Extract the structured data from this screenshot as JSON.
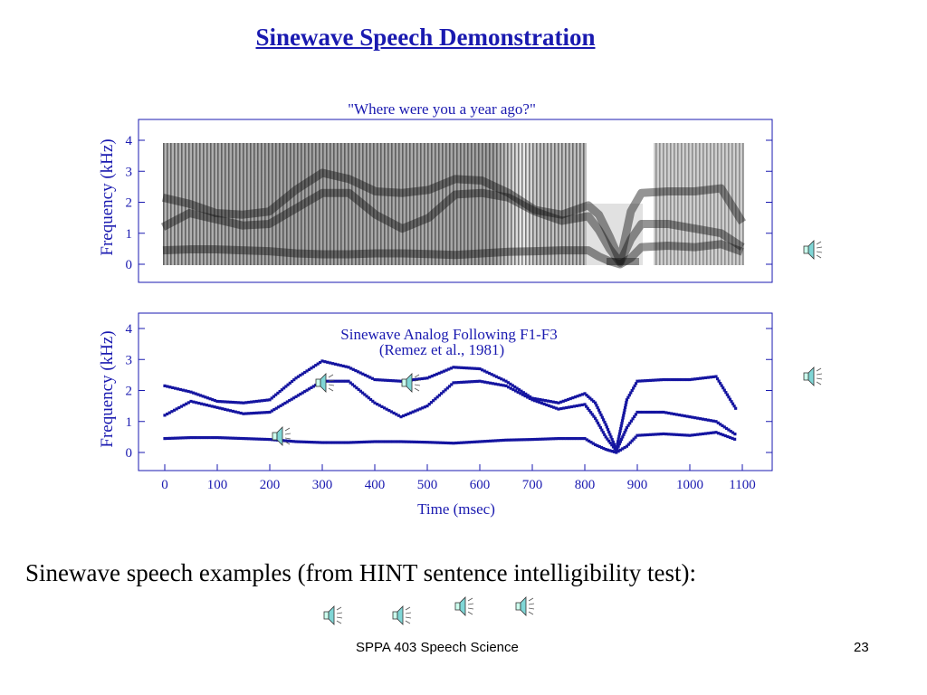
{
  "slide": {
    "title": "Sinewave Speech Demonstration",
    "caption": "Sinewave speech examples (from HINT sentence intelligibility test):",
    "footer_left": "SPPA 403 Speech Science",
    "footer_right": "23"
  },
  "colors": {
    "title": "#1a1ab0",
    "plot_text": "#1a1ab0",
    "trace": "#1414a0"
  },
  "icons": {
    "audio": "speaker-icon"
  },
  "chart_data": [
    {
      "type": "spectrogram",
      "title": "\"Where were you a year ago?\"",
      "ylabel": "Frequency (kHz)",
      "ylim": [
        0,
        4
      ],
      "yticks": [
        "0",
        "1",
        "2",
        "3",
        "4"
      ],
      "xlim": [
        0,
        1100
      ]
    },
    {
      "type": "line",
      "title": "Sinewave Analog Following F1-F3",
      "subtitle": "(Remez et al., 1981)",
      "xlabel": "Time (msec)",
      "ylabel": "Frequency (kHz)",
      "xlim": [
        0,
        1100
      ],
      "ylim": [
        0,
        4
      ],
      "xticks": [
        "0",
        "100",
        "200",
        "300",
        "400",
        "500",
        "600",
        "700",
        "800",
        "900",
        "1000",
        "1100"
      ],
      "yticks": [
        "0",
        "1",
        "2",
        "3",
        "4"
      ],
      "series": [
        {
          "x": [
            0,
            50,
            100,
            150,
            200,
            250,
            300,
            350,
            400,
            450,
            500,
            550,
            600,
            650,
            700,
            750,
            800,
            820,
            840,
            860,
            880,
            900,
            950,
            1000,
            1050,
            1090
          ],
          "values": [
            0.45,
            0.48,
            0.48,
            0.45,
            0.42,
            0.35,
            0.32,
            0.32,
            0.35,
            0.35,
            0.33,
            0.3,
            0.35,
            0.4,
            0.42,
            0.45,
            0.45,
            0.25,
            0.1,
            0.0,
            0.2,
            0.55,
            0.6,
            0.55,
            0.65,
            0.4
          ]
        },
        {
          "x": [
            0,
            50,
            100,
            150,
            200,
            250,
            300,
            350,
            400,
            450,
            500,
            550,
            600,
            650,
            700,
            750,
            800,
            820,
            840,
            860,
            880,
            900,
            950,
            1000,
            1050,
            1090
          ],
          "values": [
            1.2,
            1.65,
            1.45,
            1.25,
            1.3,
            1.8,
            2.3,
            2.3,
            1.6,
            1.15,
            1.5,
            2.25,
            2.3,
            2.15,
            1.7,
            1.4,
            1.55,
            1.1,
            0.5,
            0.05,
            0.8,
            1.3,
            1.3,
            1.15,
            1.0,
            0.55
          ]
        },
        {
          "x": [
            0,
            50,
            100,
            150,
            200,
            250,
            300,
            350,
            400,
            450,
            500,
            550,
            600,
            650,
            700,
            750,
            800,
            820,
            840,
            860,
            880,
            900,
            950,
            1000,
            1050,
            1090
          ],
          "values": [
            2.15,
            1.95,
            1.65,
            1.6,
            1.7,
            2.4,
            2.95,
            2.75,
            2.35,
            2.3,
            2.4,
            2.75,
            2.7,
            2.3,
            1.75,
            1.6,
            1.9,
            1.6,
            0.9,
            0.1,
            1.7,
            2.3,
            2.35,
            2.35,
            2.45,
            1.35
          ]
        }
      ]
    }
  ]
}
